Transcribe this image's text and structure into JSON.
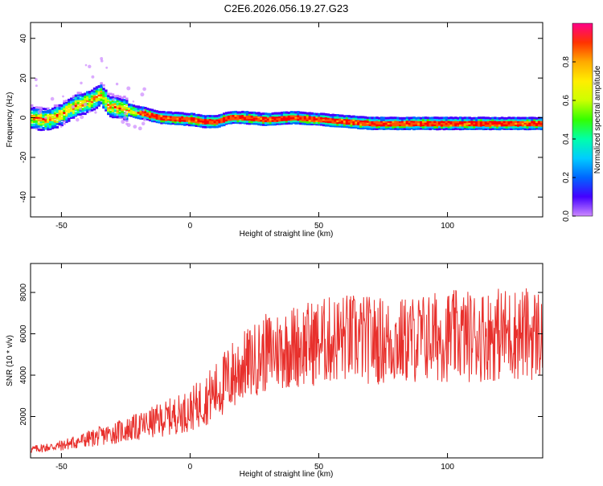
{
  "title": "C2E6.2026.056.19.27.G23",
  "colors": {
    "snr_line": "#e8302c",
    "axis": "#000000",
    "background": "#ffffff"
  },
  "chart_data": [
    {
      "type": "heatmap",
      "xlabel": "Height of straight line (km)",
      "ylabel": "Frequency (Hz)",
      "xlim": [
        -62,
        137
      ],
      "ylim": [
        -50,
        48
      ],
      "xticks": [
        -50,
        0,
        50,
        100
      ],
      "yticks": [
        -40,
        -20,
        0,
        20,
        40
      ],
      "colorbar": {
        "label": "Normalized spectral amplitude",
        "range": [
          0.0,
          1.0
        ],
        "ticks": [
          0.0,
          0.2,
          0.4,
          0.6,
          0.8
        ],
        "colormap": [
          "#cc88ff",
          "#4400ff",
          "#0066ff",
          "#00ccff",
          "#00ffaa",
          "#33ff00",
          "#ccff00",
          "#ffee00",
          "#ffaa00",
          "#ff5500",
          "#ff0000",
          "#ff00aa"
        ]
      },
      "ridge": {
        "x": [
          -62,
          -55,
          -50,
          -45,
          -40,
          -35,
          -32,
          -28,
          -22,
          -18,
          -12,
          0,
          5,
          10,
          15,
          20,
          30,
          40,
          50,
          60,
          70,
          80,
          90,
          100,
          110,
          120,
          130,
          137
        ],
        "y": [
          0,
          -1,
          2,
          6,
          8,
          12,
          6,
          5,
          3,
          2,
          0,
          -1,
          -2,
          -2,
          0,
          0,
          -1,
          0,
          -1,
          -2,
          -3,
          -3,
          -3,
          -3,
          -3,
          -3,
          -3,
          -3
        ]
      }
    },
    {
      "type": "line",
      "xlabel": "Height of straight line (km)",
      "ylabel": "SNR (10 * v/v)",
      "xlim": [
        -62,
        137
      ],
      "ylim": [
        0,
        9400
      ],
      "xticks": [
        -50,
        0,
        50,
        100
      ],
      "yticks": [
        2000,
        4000,
        6000,
        8000
      ],
      "trend": {
        "x": [
          -62,
          -50,
          -40,
          -30,
          -20,
          -10,
          0,
          10,
          20,
          30,
          40,
          50,
          60,
          70,
          80,
          90,
          100,
          110,
          120,
          130,
          137
        ],
        "y": [
          400,
          600,
          900,
          1200,
          1500,
          1900,
          2300,
          3200,
          4400,
          5100,
          5400,
          5600,
          5800,
          5700,
          5600,
          5800,
          5900,
          5900,
          6000,
          6000,
          6000
        ]
      }
    }
  ]
}
